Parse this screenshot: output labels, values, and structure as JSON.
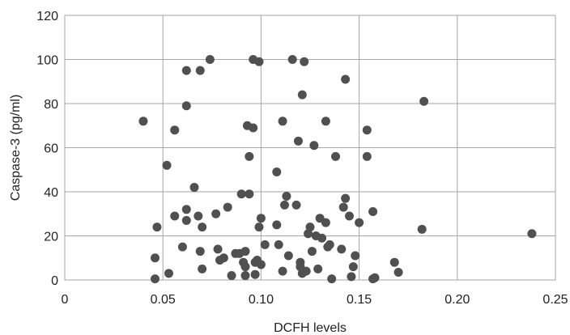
{
  "chart_data": {
    "type": "scatter",
    "title": "",
    "xlabel": "DCFH levels",
    "ylabel": "Caspase-3 (pg/ml)",
    "xlim": [
      0,
      0.25
    ],
    "ylim": [
      0,
      120
    ],
    "xticks": [
      0,
      0.05,
      0.1,
      0.15,
      0.2,
      0.25
    ],
    "xtick_labels": [
      "0",
      "0.05",
      "0.10",
      "0.15",
      "0.20",
      "0.25"
    ],
    "yticks": [
      0,
      20,
      40,
      60,
      80,
      100,
      120
    ],
    "ytick_labels": [
      "0",
      "20",
      "40",
      "60",
      "80",
      "100",
      "120"
    ],
    "grid": true,
    "legend": "none",
    "marker_color": "#505050",
    "points": [
      [
        0.04,
        72
      ],
      [
        0.046,
        10
      ],
      [
        0.046,
        0.5
      ],
      [
        0.047,
        24
      ],
      [
        0.052,
        52
      ],
      [
        0.053,
        3
      ],
      [
        0.056,
        68
      ],
      [
        0.056,
        29
      ],
      [
        0.06,
        15
      ],
      [
        0.062,
        79
      ],
      [
        0.062,
        95
      ],
      [
        0.062,
        27
      ],
      [
        0.062,
        32
      ],
      [
        0.066,
        42
      ],
      [
        0.068,
        29
      ],
      [
        0.069,
        95
      ],
      [
        0.069,
        13
      ],
      [
        0.07,
        24
      ],
      [
        0.07,
        5
      ],
      [
        0.074,
        100
      ],
      [
        0.077,
        30
      ],
      [
        0.078,
        14
      ],
      [
        0.079,
        9
      ],
      [
        0.081,
        10
      ],
      [
        0.083,
        33
      ],
      [
        0.085,
        2
      ],
      [
        0.087,
        12
      ],
      [
        0.089,
        12
      ],
      [
        0.09,
        39
      ],
      [
        0.091,
        8
      ],
      [
        0.092,
        6
      ],
      [
        0.092,
        13
      ],
      [
        0.092,
        2
      ],
      [
        0.093,
        70
      ],
      [
        0.094,
        56
      ],
      [
        0.094,
        39
      ],
      [
        0.096,
        69
      ],
      [
        0.096,
        100
      ],
      [
        0.097,
        2.5
      ],
      [
        0.097,
        8
      ],
      [
        0.098,
        9
      ],
      [
        0.099,
        99
      ],
      [
        0.099,
        24
      ],
      [
        0.1,
        28
      ],
      [
        0.1,
        7
      ],
      [
        0.102,
        16
      ],
      [
        0.108,
        25
      ],
      [
        0.108,
        49
      ],
      [
        0.109,
        16
      ],
      [
        0.111,
        72
      ],
      [
        0.111,
        4
      ],
      [
        0.112,
        34
      ],
      [
        0.113,
        38
      ],
      [
        0.114,
        11
      ],
      [
        0.116,
        100
      ],
      [
        0.118,
        34
      ],
      [
        0.119,
        63
      ],
      [
        0.12,
        6
      ],
      [
        0.12,
        8
      ],
      [
        0.121,
        3
      ],
      [
        0.121,
        84
      ],
      [
        0.122,
        99
      ],
      [
        0.123,
        4
      ],
      [
        0.124,
        21
      ],
      [
        0.125,
        24
      ],
      [
        0.126,
        13
      ],
      [
        0.127,
        61
      ],
      [
        0.128,
        20
      ],
      [
        0.129,
        5
      ],
      [
        0.13,
        28
      ],
      [
        0.131,
        19
      ],
      [
        0.133,
        72
      ],
      [
        0.133,
        26
      ],
      [
        0.134,
        15
      ],
      [
        0.135,
        16
      ],
      [
        0.136,
        0.5
      ],
      [
        0.138,
        56
      ],
      [
        0.141,
        14
      ],
      [
        0.142,
        33
      ],
      [
        0.143,
        91
      ],
      [
        0.143,
        37
      ],
      [
        0.145,
        29
      ],
      [
        0.146,
        1.5
      ],
      [
        0.147,
        6
      ],
      [
        0.148,
        11
      ],
      [
        0.15,
        26
      ],
      [
        0.154,
        68
      ],
      [
        0.154,
        56
      ],
      [
        0.157,
        31
      ],
      [
        0.157,
        0.5
      ],
      [
        0.158,
        1
      ],
      [
        0.168,
        8
      ],
      [
        0.17,
        3.5
      ],
      [
        0.182,
        23
      ],
      [
        0.183,
        81
      ],
      [
        0.238,
        21
      ]
    ]
  }
}
